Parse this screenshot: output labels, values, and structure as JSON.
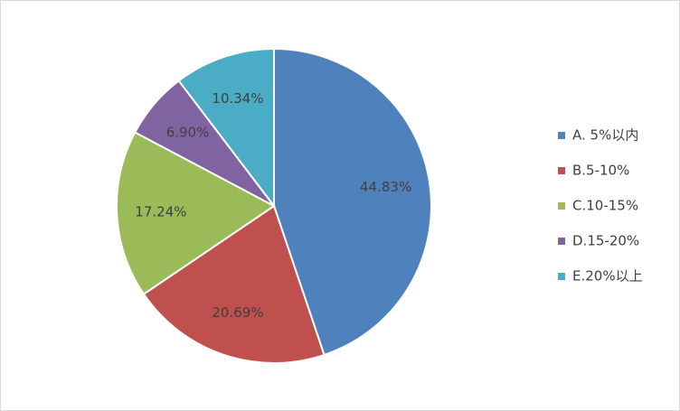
{
  "chart_data": {
    "type": "pie",
    "categories": [
      "A. 5%以内",
      "B.5-10%",
      "C.10-15%",
      "D.15-20%",
      "E.20%以上"
    ],
    "values": [
      44.83,
      20.69,
      17.24,
      6.9,
      10.34
    ],
    "value_labels": [
      "44.83%",
      "20.69%",
      "17.24%",
      "6.90%",
      "10.34%"
    ],
    "colors": [
      "#4f81bd",
      "#c0504d",
      "#9bbb59",
      "#8064a2",
      "#4bacc6"
    ],
    "legend": "right"
  }
}
